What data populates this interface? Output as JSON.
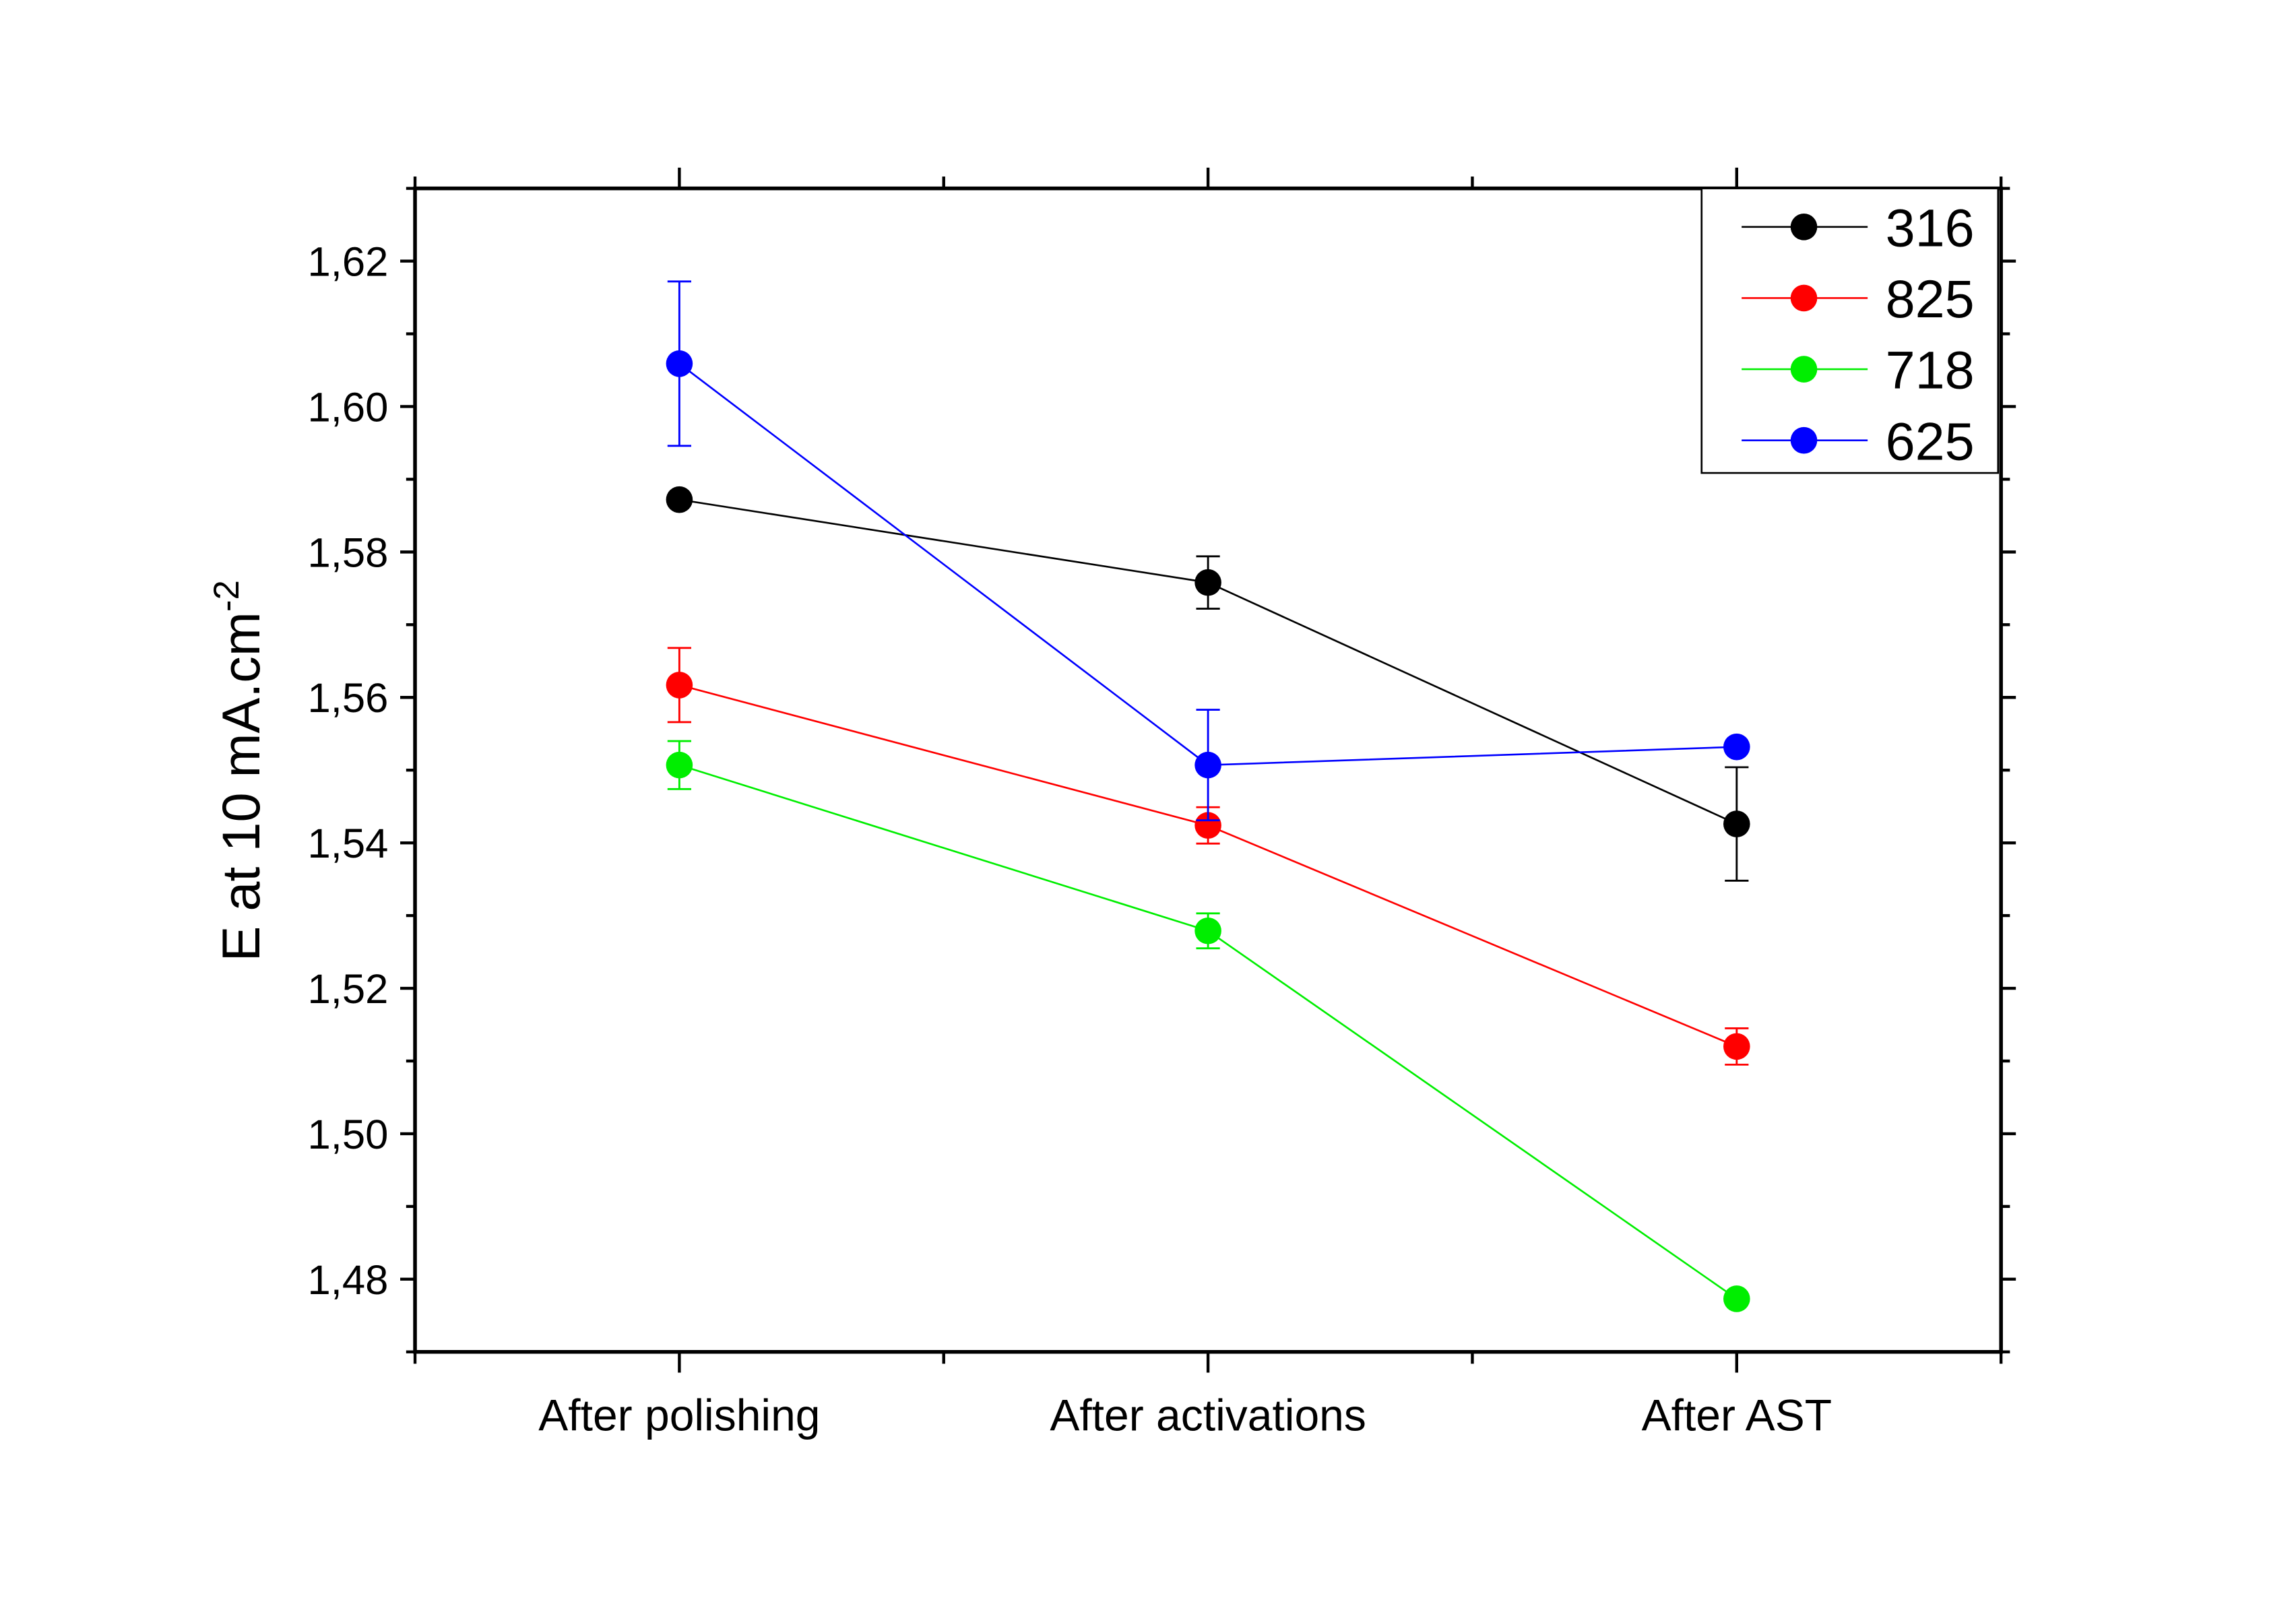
{
  "chart_data": {
    "type": "line",
    "title": "",
    "xlabel": "",
    "ylabel": "E at 10 mA.cm",
    "ylabel_superscript": "-2",
    "categories": [
      "After polishing",
      "After activations",
      "After AST"
    ],
    "xlim": [
      0.5,
      3.5
    ],
    "ylim": [
      1.47,
      1.63
    ],
    "yticks": [
      "1,48",
      "1,50",
      "1,52",
      "1,54",
      "1,56",
      "1,58",
      "1,60",
      "1,62"
    ],
    "ytick_values": [
      1.48,
      1.5,
      1.52,
      1.54,
      1.56,
      1.58,
      1.6,
      1.62
    ],
    "grid": false,
    "legend_position": "top-right",
    "series": [
      {
        "name": "316",
        "color": "#000000",
        "values": [
          1.5872,
          1.5758,
          1.5426
        ],
        "errors": [
          0,
          0.0036,
          0.0078
        ]
      },
      {
        "name": "825",
        "color": "#ff0000",
        "values": [
          1.5617,
          1.5424,
          1.512
        ],
        "errors": [
          0.0051,
          0.0025,
          0.0025
        ]
      },
      {
        "name": "718",
        "color": "#00ee00",
        "values": [
          1.5507,
          1.5279,
          1.4773
        ],
        "errors": [
          0.0033,
          0.0024,
          0
        ]
      },
      {
        "name": "625",
        "color": "#0000ff",
        "values": [
          1.6059,
          1.5507,
          1.5532
        ],
        "errors": [
          0.0113,
          0.0076,
          0
        ]
      }
    ]
  }
}
